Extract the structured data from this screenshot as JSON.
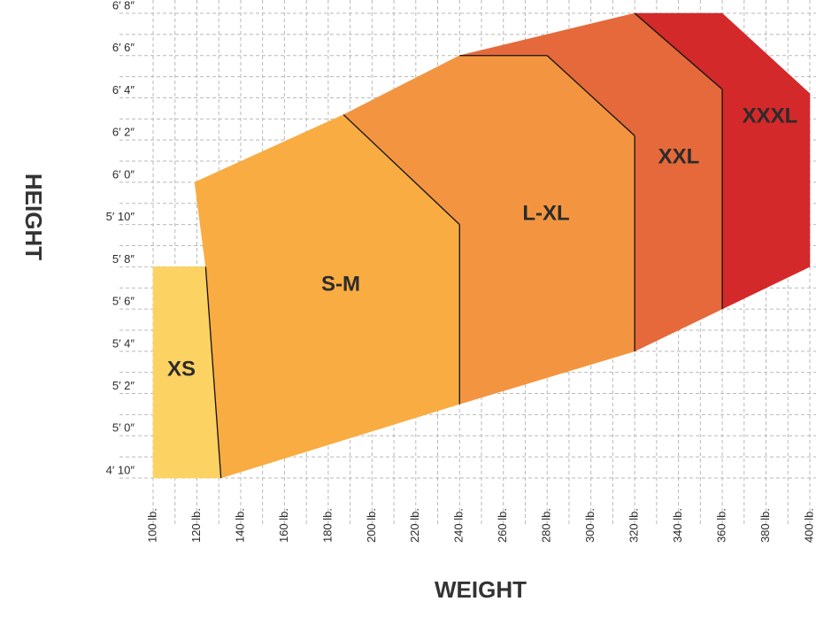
{
  "chart_data": {
    "type": "region",
    "xlabel": "WEIGHT",
    "ylabel": "HEIGHT",
    "xlim": [
      100,
      400
    ],
    "ylim": [
      58,
      80
    ],
    "xticks": [
      {
        "value": 100,
        "label": "100 lb."
      },
      {
        "value": 120,
        "label": "120 lb."
      },
      {
        "value": 140,
        "label": "140 lb."
      },
      {
        "value": 160,
        "label": "160 lb."
      },
      {
        "value": 180,
        "label": "180 lb."
      },
      {
        "value": 200,
        "label": "200 lb."
      },
      {
        "value": 220,
        "label": "220 lb."
      },
      {
        "value": 240,
        "label": "240 lb."
      },
      {
        "value": 260,
        "label": "260 lb."
      },
      {
        "value": 280,
        "label": "280 lb."
      },
      {
        "value": 300,
        "label": "300 lb."
      },
      {
        "value": 320,
        "label": "320 lb."
      },
      {
        "value": 340,
        "label": "340 lb."
      },
      {
        "value": 360,
        "label": "360 lb."
      },
      {
        "value": 380,
        "label": "380 lb."
      },
      {
        "value": 400,
        "label": "400 lb."
      }
    ],
    "yticks": [
      {
        "value": 58,
        "label": "4′ 10″"
      },
      {
        "value": 60,
        "label": "5′ 0″"
      },
      {
        "value": 62,
        "label": "5′ 2″"
      },
      {
        "value": 64,
        "label": "5′ 4″"
      },
      {
        "value": 66,
        "label": "5′ 6″"
      },
      {
        "value": 68,
        "label": "5′ 8″"
      },
      {
        "value": 70,
        "label": "5′ 10″"
      },
      {
        "value": 72,
        "label": "6′ 0″"
      },
      {
        "value": 74,
        "label": "6′ 2″"
      },
      {
        "value": 76,
        "label": "6′ 4″"
      },
      {
        "value": 78,
        "label": "6′ 6″"
      },
      {
        "value": 80,
        "label": "6′ 8″"
      }
    ],
    "xgrid": [
      100,
      110,
      120,
      130,
      140,
      150,
      160,
      170,
      180,
      190,
      200,
      210,
      220,
      230,
      240,
      250,
      260,
      270,
      280,
      290,
      300,
      310,
      320,
      330,
      340,
      350,
      360,
      370,
      380,
      390,
      400
    ],
    "ygrid": [
      58,
      59,
      60,
      61,
      62,
      63,
      64,
      65,
      66,
      67,
      68,
      69,
      70,
      71,
      72,
      73,
      74,
      75,
      76,
      77,
      78,
      79,
      80
    ],
    "grid": true,
    "regions": [
      {
        "name": "XS",
        "color": "#fcd263",
        "points": [
          [
            100,
            68
          ],
          [
            124,
            68
          ],
          [
            131,
            58
          ],
          [
            100,
            58
          ]
        ]
      },
      {
        "name": "S-M",
        "color": "#f8ac42",
        "points": [
          [
            119,
            72
          ],
          [
            187,
            75.2
          ],
          [
            240,
            70
          ],
          [
            240,
            61.5
          ],
          [
            131,
            58
          ],
          [
            124,
            68
          ]
        ]
      },
      {
        "name": "L-XL",
        "color": "#f39540",
        "points": [
          [
            187,
            75.2
          ],
          [
            240,
            78
          ],
          [
            280,
            78
          ],
          [
            320,
            74.2
          ],
          [
            320,
            64
          ],
          [
            240,
            61.5
          ],
          [
            240,
            70
          ]
        ]
      },
      {
        "name": "XXL",
        "color": "#e5693a",
        "points": [
          [
            240,
            78
          ],
          [
            320,
            80
          ],
          [
            360,
            76.4
          ],
          [
            360,
            66
          ],
          [
            320,
            64
          ],
          [
            320,
            74.2
          ],
          [
            280,
            78
          ]
        ]
      },
      {
        "name": "XXXL",
        "color": "#d3292b",
        "points": [
          [
            320,
            80
          ],
          [
            360,
            80
          ],
          [
            400,
            76.2
          ],
          [
            400,
            68
          ],
          [
            360,
            66
          ],
          [
            360,
            76.4
          ]
        ]
      }
    ]
  }
}
